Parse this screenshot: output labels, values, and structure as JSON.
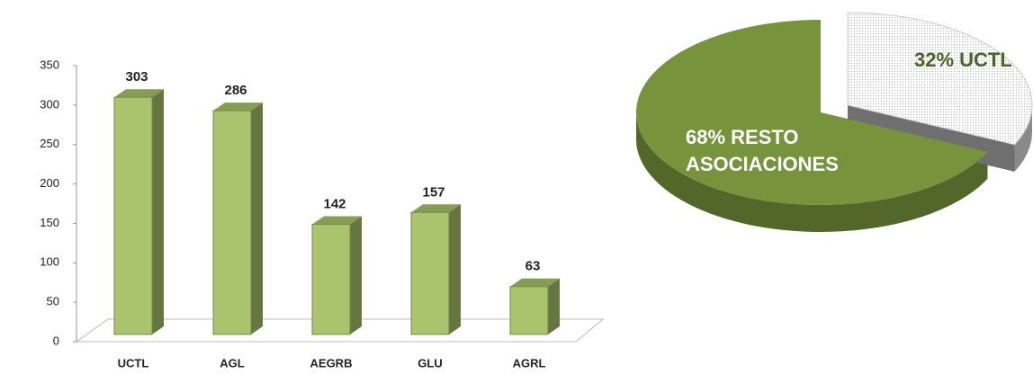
{
  "chart_data": [
    {
      "type": "bar",
      "categories": [
        "UCTL",
        "AGL",
        "AEGRB",
        "GLU",
        "AGRL"
      ],
      "values": [
        303,
        286,
        142,
        157,
        63
      ],
      "color": "#a9c46c",
      "ylim": [
        0,
        350
      ],
      "yticks": [
        0,
        50,
        100,
        150,
        200,
        250,
        300,
        350
      ]
    },
    {
      "type": "pie",
      "values": [
        68,
        32
      ],
      "value_labels": [
        "68% RESTO ASOCIACIONES",
        "32% UCTL"
      ],
      "colors": [
        "#77933c",
        "#ececec"
      ],
      "label_colors": [
        "#ffffff",
        "#4f6228"
      ]
    }
  ]
}
